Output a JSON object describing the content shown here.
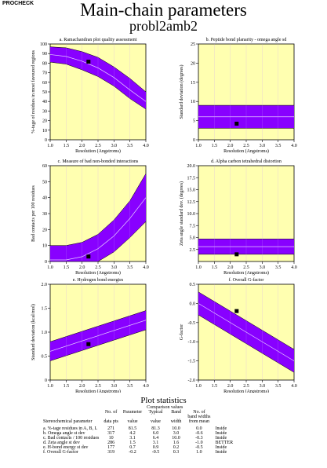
{
  "header_tag": "PROCHECK",
  "title": "Main-chain parameters",
  "subtitle": "probl2amb2",
  "colors": {
    "panel_bg": "#ffffb0",
    "band": "#8800ff",
    "band_line": "#cc99ff",
    "point": "#000000"
  },
  "chart_data": [
    {
      "type": "line",
      "id": "a",
      "title": "a. Ramachandran plot quality assessment",
      "xlabel": "Resolution (Angstroms)",
      "ylabel": "%-tage of residues in most favoured regions",
      "xlim": [
        1.0,
        4.0
      ],
      "ylim": [
        0,
        100
      ],
      "xticks": [
        "1.0",
        "1.5",
        "2.0",
        "2.5",
        "3.0",
        "3.5",
        "4.0"
      ],
      "yticks": [
        "0",
        "10",
        "20",
        "30",
        "40",
        "50",
        "60",
        "70",
        "80",
        "90",
        "100"
      ],
      "band": {
        "x": [
          1.0,
          1.5,
          2.0,
          2.5,
          3.0,
          3.5,
          4.0
        ],
        "upper": [
          97,
          96,
          92,
          86,
          76,
          64,
          50
        ],
        "center": [
          89,
          87,
          82,
          75,
          65,
          52,
          40
        ],
        "lower": [
          81,
          79,
          73,
          66,
          56,
          43,
          32
        ]
      },
      "point": {
        "x": 2.2,
        "y": 81.5
      }
    },
    {
      "type": "line",
      "id": "b",
      "title": "b. Peptide bond planarity - omega angle sd",
      "xlabel": "Resolution (Angstroms)",
      "ylabel": "Standard deviation (degrees)",
      "xlim": [
        1.0,
        4.0
      ],
      "ylim": [
        0,
        25
      ],
      "xticks": [
        "1.0",
        "1.5",
        "2.0",
        "2.5",
        "3.0",
        "3.5",
        "4.0"
      ],
      "yticks": [
        "0",
        "5",
        "10",
        "15",
        "20",
        "25"
      ],
      "band": {
        "x": [
          1.0,
          4.0
        ],
        "upper": [
          9,
          9
        ],
        "center": [
          6,
          6
        ],
        "lower": [
          3,
          3
        ]
      },
      "point": {
        "x": 2.2,
        "y": 4.2
      }
    },
    {
      "type": "line",
      "id": "c",
      "title": "c. Measure of bad non-bonded interactions",
      "xlabel": "Resolution (Angstroms)",
      "ylabel": "Bad contacts per 100 residues",
      "xlim": [
        1.0,
        4.0
      ],
      "ylim": [
        0,
        60
      ],
      "xticks": [
        "1.0",
        "1.5",
        "2.0",
        "2.5",
        "3.0",
        "3.5",
        "4.0"
      ],
      "yticks": [
        "0",
        "10",
        "20",
        "30",
        "40",
        "50",
        "60"
      ],
      "band": {
        "x": [
          1.0,
          1.5,
          2.0,
          2.5,
          3.0,
          3.5,
          4.0
        ],
        "upper": [
          10,
          10,
          12,
          17,
          26,
          38,
          55
        ],
        "center": [
          1,
          1,
          3,
          8,
          16,
          27,
          40
        ],
        "lower": [
          0,
          0,
          0,
          0,
          6,
          15,
          25
        ]
      },
      "point": {
        "x": 2.2,
        "y": 3.1
      }
    },
    {
      "type": "line",
      "id": "d",
      "title": "d. Alpha carbon tetrahedral distortion",
      "xlabel": "Resolution (Angstroms)",
      "ylabel": "Zeta angle standard dev. (degrees)",
      "xlim": [
        1.0,
        4.0
      ],
      "ylim": [
        0,
        20
      ],
      "xticks": [
        "1.0",
        "1.5",
        "2.0",
        "2.5",
        "3.0",
        "3.5",
        "4.0"
      ],
      "yticks": [
        "2.5",
        "5.0",
        "7.5",
        "10.0",
        "12.5",
        "15.0",
        "17.5",
        "20.0"
      ],
      "band": {
        "x": [
          1.0,
          4.0
        ],
        "upper": [
          4.7,
          4.7
        ],
        "center": [
          3.1,
          3.1
        ],
        "lower": [
          1.5,
          1.5
        ]
      },
      "point": {
        "x": 2.2,
        "y": 1.5
      }
    },
    {
      "type": "line",
      "id": "e",
      "title": "e. Hydrogen bond energies",
      "xlabel": "Resolution (Angstroms)",
      "ylabel": "Standard deviation (kcal/mol)",
      "xlim": [
        1.0,
        4.0
      ],
      "ylim": [
        0,
        2.0
      ],
      "xticks": [
        "1.0",
        "1.5",
        "2.0",
        "2.5",
        "3.0",
        "3.5",
        "4.0"
      ],
      "yticks": [
        "0",
        "0.5",
        "1.0",
        "1.5",
        "2.0"
      ],
      "band": {
        "x": [
          1.0,
          4.0
        ],
        "upper": [
          0.8,
          1.45
        ],
        "center": [
          0.6,
          1.25
        ],
        "lower": [
          0.4,
          1.05
        ]
      },
      "point": {
        "x": 2.2,
        "y": 0.75
      }
    },
    {
      "type": "line",
      "id": "f",
      "title": "f. Overall G-factor",
      "xlabel": "Resolution (Angstroms)",
      "ylabel": "G-factor",
      "xlim": [
        1.0,
        4.0
      ],
      "ylim": [
        -2.0,
        0.5
      ],
      "xticks": [
        "1.0",
        "1.5",
        "2.0",
        "2.5",
        "3.0",
        "3.5",
        "4.0"
      ],
      "yticks": [
        "-2.0",
        "-1.5",
        "-1.0",
        "-0.5",
        "0.0",
        "0.5"
      ],
      "band": {
        "x": [
          1.0,
          4.0
        ],
        "upper": [
          0.3,
          -1.2
        ],
        "center": [
          0.0,
          -1.5
        ],
        "lower": [
          -0.3,
          -1.8
        ]
      },
      "point": {
        "x": 2.2,
        "y": -0.2
      }
    }
  ],
  "stats": {
    "title": "Plot statistics",
    "header_group": "Comparison values",
    "headers": {
      "param": "Stereochemical parameter",
      "n": [
        "No. of",
        "data pts"
      ],
      "value": [
        "Parameter",
        "value"
      ],
      "typical": [
        "Typical",
        "value"
      ],
      "band": [
        "Band",
        "width"
      ],
      "widths": [
        "No. of",
        "band widths",
        "from mean"
      ]
    },
    "rows": [
      {
        "param": "a. %-tage residues in A, B, L",
        "n": "271",
        "value": "81.5",
        "typical": "81.3",
        "band": "10.0",
        "widths": "0.0",
        "verdict": "Inside"
      },
      {
        "param": "b. Omega angle st dev",
        "n": "317",
        "value": "4.2",
        "typical": "6.0",
        "band": "3.0",
        "widths": "-0.6",
        "verdict": "Inside"
      },
      {
        "param": "c. Bad contacts / 100 residues",
        "n": "10",
        "value": "3.1",
        "typical": "6.4",
        "band": "10.0",
        "widths": "-0.3",
        "verdict": "Inside"
      },
      {
        "param": "d. Zeta angle st dev",
        "n": "286",
        "value": "1.5",
        "typical": "3.1",
        "band": "1.6",
        "widths": "-1.0",
        "verdict": "BETTER"
      },
      {
        "param": "e. H-bond energy st dev",
        "n": "177",
        "value": "0.7",
        "typical": "0.9",
        "band": "0.2",
        "widths": "-0.5",
        "verdict": "Inside"
      },
      {
        "param": "f. Overall G-factor",
        "n": "319",
        "value": "-0.2",
        "typical": "-0.5",
        "band": "0.3",
        "widths": "1.0",
        "verdict": "Inside"
      }
    ]
  }
}
